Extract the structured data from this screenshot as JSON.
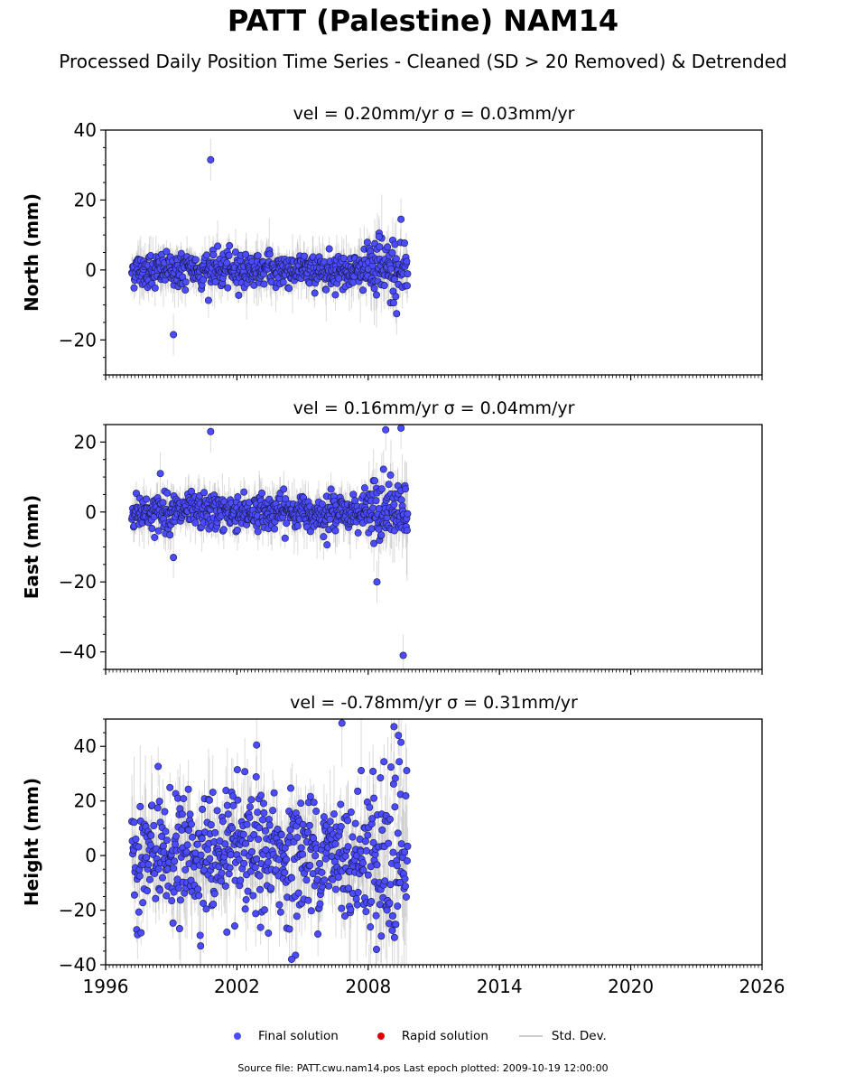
{
  "title": "PATT (Palestine) NAM14",
  "subtitle": "Processed Daily Position Time Series - Cleaned (SD > 20 Removed) & Detrended",
  "source_line": "Source file: PATT.cwu.nam14.pos  Last epoch plotted: 2009-10-19 12:00:00",
  "legend": {
    "final": "Final solution",
    "rapid": "Rapid solution",
    "std": "Std. Dev."
  },
  "colors": {
    "final": "#4b4bff",
    "rapid": "#dd0000",
    "std": "#999999"
  },
  "chart_data": [
    {
      "type": "scatter",
      "component": "North",
      "title": "vel = 0.20mm/yr   σ = 0.03mm/yr",
      "ylabel": "North (mm)",
      "xlim": [
        1996,
        2026
      ],
      "ylim": [
        -30,
        40
      ],
      "yticks": [
        -20,
        0,
        20,
        40
      ],
      "xticks": [
        1996,
        2002,
        2008,
        2014,
        2020,
        2026
      ],
      "data_span": [
        1997.2,
        2009.8
      ],
      "typical_spread": 2.5,
      "typical_sd": 3,
      "notable_points": [
        {
          "x": 2000.8,
          "y": 31.5
        },
        {
          "x": 1999.1,
          "y": -18.5
        },
        {
          "x": 2009.5,
          "y": 14.5
        },
        {
          "x": 2008.5,
          "y": 9.5
        },
        {
          "x": 2009.3,
          "y": -12.5
        }
      ]
    },
    {
      "type": "scatter",
      "component": "East",
      "title": "vel = 0.16mm/yr   σ = 0.04mm/yr",
      "ylabel": "East (mm)",
      "xlim": [
        1996,
        2026
      ],
      "ylim": [
        -45,
        25
      ],
      "yticks": [
        -40,
        -20,
        0,
        20
      ],
      "xticks": [
        1996,
        2002,
        2008,
        2014,
        2020,
        2026
      ],
      "data_span": [
        1997.2,
        2009.8
      ],
      "typical_spread": 2.5,
      "typical_sd": 3,
      "notable_points": [
        {
          "x": 2000.8,
          "y": 23
        },
        {
          "x": 1998.5,
          "y": 11
        },
        {
          "x": 1999.1,
          "y": -13
        },
        {
          "x": 2009.5,
          "y": 24
        },
        {
          "x": 2008.8,
          "y": 23.5
        },
        {
          "x": 2009.6,
          "y": -41
        },
        {
          "x": 2008.4,
          "y": -20
        }
      ]
    },
    {
      "type": "scatter",
      "component": "Height",
      "title": "vel = -0.78mm/yr   σ = 0.31mm/yr",
      "ylabel": "Height (mm)",
      "xlim": [
        1996,
        2026
      ],
      "ylim": [
        -40,
        50
      ],
      "yticks": [
        -40,
        -20,
        0,
        20,
        40
      ],
      "xticks": [
        1996,
        2002,
        2008,
        2014,
        2020,
        2026
      ],
      "data_span": [
        1997.2,
        2009.8
      ],
      "typical_spread": 11,
      "typical_sd": 8,
      "notable_points": [
        {
          "x": 2006.8,
          "y": 48.5
        },
        {
          "x": 2009.5,
          "y": 41.5
        },
        {
          "x": 2002.9,
          "y": 40.5
        },
        {
          "x": 2004.5,
          "y": -38
        },
        {
          "x": 2009.2,
          "y": -30
        }
      ]
    }
  ]
}
